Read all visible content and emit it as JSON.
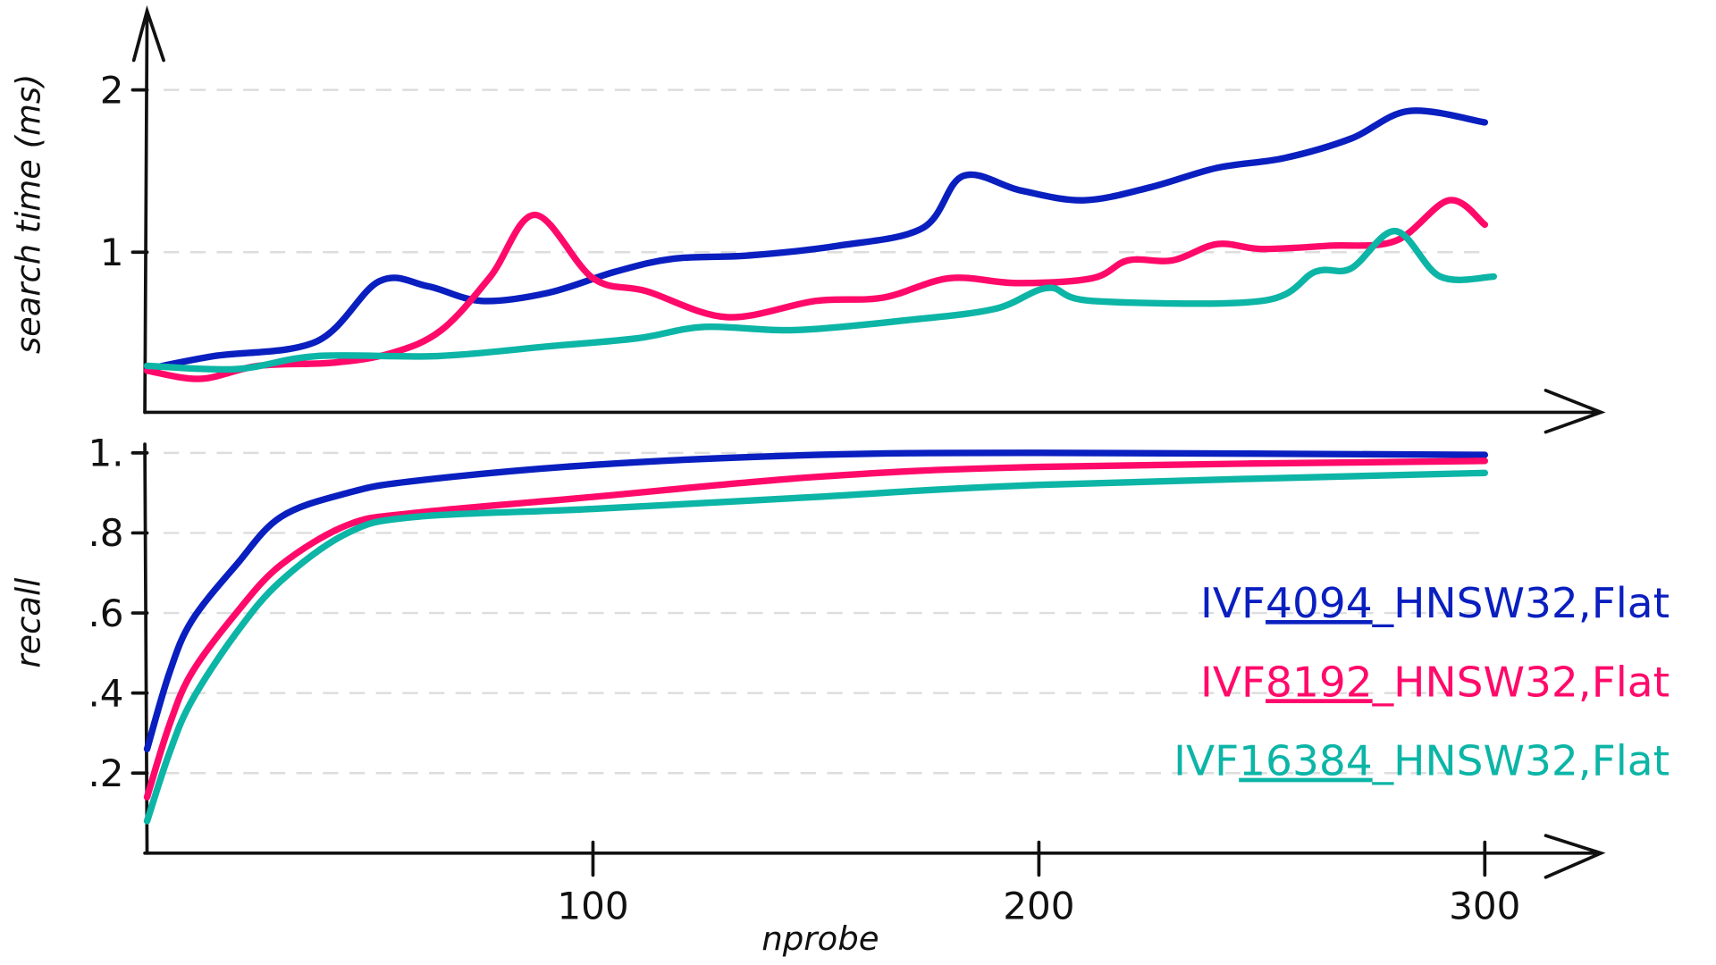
{
  "colors": {
    "blue": "#0a1fbf",
    "pink": "#ff0a6a",
    "teal": "#0cb5a6"
  },
  "chart_data": [
    {
      "type": "line",
      "title": "",
      "xlabel": "",
      "ylabel": "search time (ms)",
      "xlim": [
        0,
        330
      ],
      "ylim": [
        0,
        2.4
      ],
      "yticks": [
        {
          "v": 1,
          "label": "1"
        },
        {
          "v": 2,
          "label": "2"
        }
      ],
      "grid": true,
      "series": [
        {
          "name": "IVF4094_HNSW32,Flat",
          "color": "blue",
          "points": [
            [
              0,
              0.28
            ],
            [
              15,
              0.36
            ],
            [
              38,
              0.45
            ],
            [
              52,
              0.82
            ],
            [
              63,
              0.79
            ],
            [
              75,
              0.7
            ],
            [
              90,
              0.75
            ],
            [
              105,
              0.88
            ],
            [
              118,
              0.96
            ],
            [
              135,
              0.98
            ],
            [
              155,
              1.04
            ],
            [
              174,
              1.15
            ],
            [
              183,
              1.47
            ],
            [
              196,
              1.38
            ],
            [
              210,
              1.32
            ],
            [
              225,
              1.4
            ],
            [
              240,
              1.52
            ],
            [
              255,
              1.58
            ],
            [
              270,
              1.7
            ],
            [
              283,
              1.87
            ],
            [
              300,
              1.8
            ]
          ]
        },
        {
          "name": "IVF8192_HNSW32,Flat",
          "color": "pink",
          "points": [
            [
              0,
              0.27
            ],
            [
              12,
              0.22
            ],
            [
              25,
              0.3
            ],
            [
              42,
              0.32
            ],
            [
              55,
              0.38
            ],
            [
              66,
              0.52
            ],
            [
              77,
              0.85
            ],
            [
              87,
              1.23
            ],
            [
              100,
              0.84
            ],
            [
              112,
              0.76
            ],
            [
              130,
              0.6
            ],
            [
              150,
              0.7
            ],
            [
              165,
              0.72
            ],
            [
              180,
              0.84
            ],
            [
              195,
              0.81
            ],
            [
              212,
              0.84
            ],
            [
              220,
              0.95
            ],
            [
              230,
              0.95
            ],
            [
              240,
              1.05
            ],
            [
              250,
              1.02
            ],
            [
              265,
              1.04
            ],
            [
              280,
              1.07
            ],
            [
              292,
              1.32
            ],
            [
              300,
              1.17
            ]
          ]
        },
        {
          "name": "IVF16384_HNSW32,Flat",
          "color": "teal",
          "points": [
            [
              0,
              0.3
            ],
            [
              20,
              0.28
            ],
            [
              38,
              0.36
            ],
            [
              65,
              0.36
            ],
            [
              90,
              0.42
            ],
            [
              110,
              0.47
            ],
            [
              125,
              0.54
            ],
            [
              145,
              0.52
            ],
            [
              170,
              0.58
            ],
            [
              190,
              0.65
            ],
            [
              202,
              0.78
            ],
            [
              212,
              0.7
            ],
            [
              250,
              0.7
            ],
            [
              262,
              0.88
            ],
            [
              270,
              0.9
            ],
            [
              280,
              1.13
            ],
            [
              290,
              0.85
            ],
            [
              302,
              0.85
            ]
          ]
        }
      ]
    },
    {
      "type": "line",
      "title": "",
      "xlabel": "nprobe",
      "ylabel": "recall",
      "xlim": [
        0,
        330
      ],
      "ylim": [
        0,
        1
      ],
      "xticks": [
        {
          "v": 100,
          "label": "100"
        },
        {
          "v": 200,
          "label": "200"
        },
        {
          "v": 300,
          "label": "300"
        }
      ],
      "yticks": [
        {
          "v": 0.2,
          "label": ".2"
        },
        {
          "v": 0.4,
          "label": ".4"
        },
        {
          "v": 0.6,
          "label": ".6"
        },
        {
          "v": 0.8,
          "label": ".8"
        },
        {
          "v": 1,
          "label": "1."
        }
      ],
      "grid": true,
      "legend": "right",
      "series": [
        {
          "name": "IVF4094_HNSW32,Flat",
          "prefix": "IVF",
          "num": "4094",
          "suffix": "_HNSW32,Flat",
          "color": "blue",
          "points": [
            [
              0,
              0.26
            ],
            [
              5,
              0.45
            ],
            [
              10,
              0.58
            ],
            [
              20,
              0.72
            ],
            [
              30,
              0.84
            ],
            [
              45,
              0.9
            ],
            [
              60,
              0.93
            ],
            [
              100,
              0.97
            ],
            [
              150,
              0.995
            ],
            [
              200,
              1.0
            ],
            [
              300,
              0.995
            ]
          ]
        },
        {
          "name": "IVF8192_HNSW32,Flat",
          "prefix": "IVF",
          "num": "8192",
          "suffix": "_HNSW32,Flat",
          "color": "pink",
          "points": [
            [
              0,
              0.14
            ],
            [
              5,
              0.32
            ],
            [
              10,
              0.45
            ],
            [
              20,
              0.6
            ],
            [
              30,
              0.72
            ],
            [
              45,
              0.82
            ],
            [
              60,
              0.85
            ],
            [
              100,
              0.89
            ],
            [
              150,
              0.94
            ],
            [
              200,
              0.965
            ],
            [
              300,
              0.98
            ]
          ]
        },
        {
          "name": "IVF16384_HNSW32,Flat",
          "prefix": "IVF",
          "num": "16384",
          "suffix": "_HNSW32,Flat",
          "color": "teal",
          "points": [
            [
              0,
              0.08
            ],
            [
              5,
              0.25
            ],
            [
              10,
              0.38
            ],
            [
              20,
              0.55
            ],
            [
              30,
              0.68
            ],
            [
              45,
              0.8
            ],
            [
              60,
              0.84
            ],
            [
              100,
              0.86
            ],
            [
              150,
              0.89
            ],
            [
              200,
              0.92
            ],
            [
              300,
              0.95
            ]
          ]
        }
      ]
    }
  ]
}
